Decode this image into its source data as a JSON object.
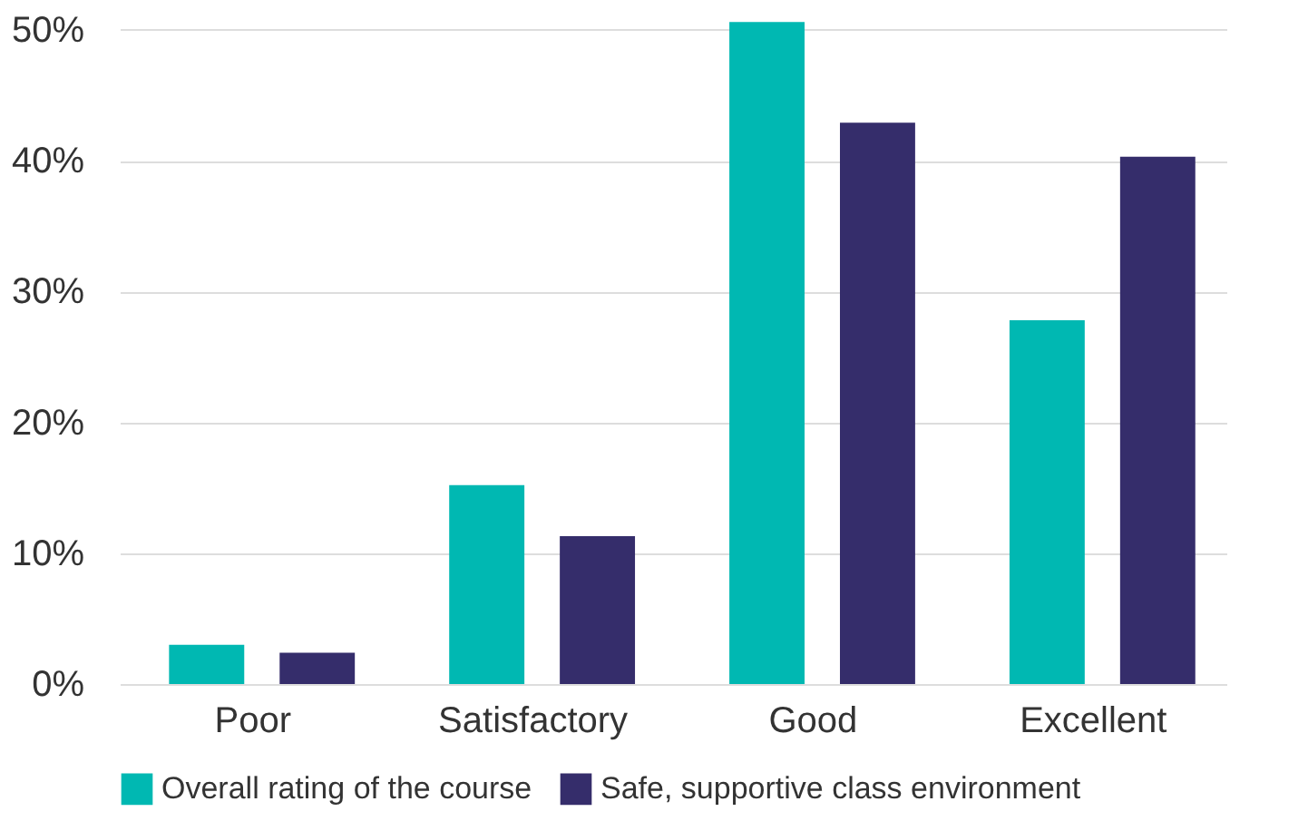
{
  "chart_data": {
    "type": "bar",
    "categories": [
      "Poor",
      "Satisfactory",
      "Good",
      "Excellent"
    ],
    "series": [
      {
        "name": "Overall rating of the course",
        "color": "#00b8b2",
        "values": [
          3.0,
          15.2,
          50.6,
          27.8
        ]
      },
      {
        "name": "Safe, supportive class environment",
        "color": "#352d6b",
        "values": [
          2.4,
          11.3,
          42.9,
          40.3
        ]
      }
    ],
    "ylim": [
      0,
      52
    ],
    "yticks": [
      {
        "value": 0,
        "label": "0%"
      },
      {
        "value": 10,
        "label": "10%"
      },
      {
        "value": 20,
        "label": "20%"
      },
      {
        "value": 30,
        "label": "30%"
      },
      {
        "value": 40,
        "label": "40%"
      },
      {
        "value": 50,
        "label": "50%"
      }
    ],
    "grid": "y",
    "legend": "bottom"
  }
}
